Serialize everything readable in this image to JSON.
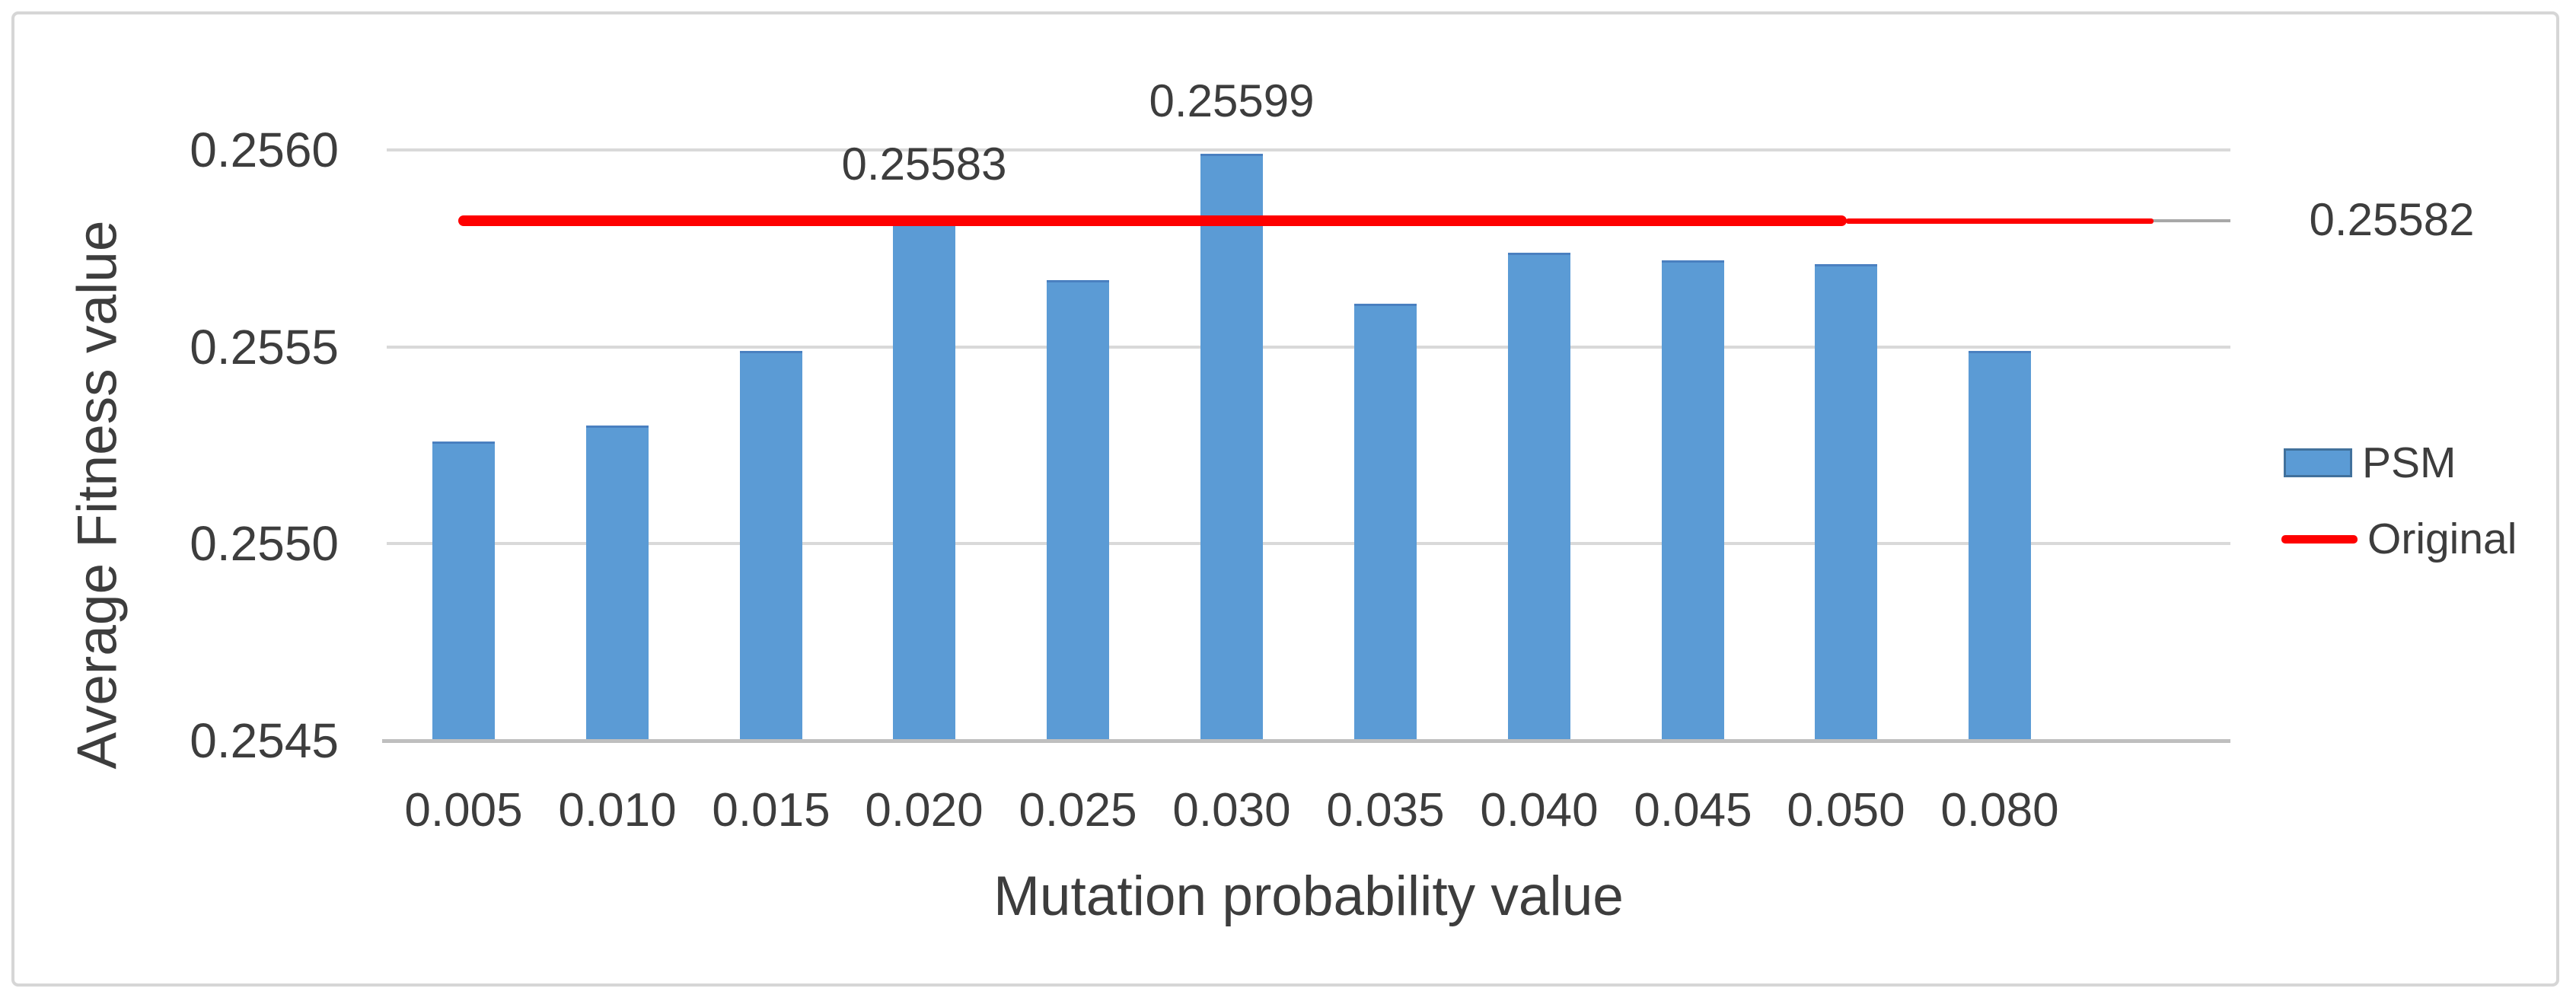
{
  "figure": {
    "background": "#ffffff",
    "border_color": "#d6d6d6"
  },
  "chart_data": {
    "type": "bar",
    "title": "",
    "xlabel": "Mutation probability value",
    "ylabel": "Average Fitness value",
    "categories": [
      "0.005",
      "0.010",
      "0.015",
      "0.020",
      "0.025",
      "0.030",
      "0.035",
      "0.040",
      "0.045",
      "0.050",
      "0.080"
    ],
    "series": [
      {
        "name": "PSM",
        "type": "bar",
        "color": "#5b9bd5",
        "border_color": "#4a80c0",
        "values": [
          0.25526,
          0.2553,
          0.25549,
          0.25583,
          0.25567,
          0.25599,
          0.25561,
          0.25574,
          0.25572,
          0.25571,
          0.25549
        ],
        "data_labels": [
          {
            "index": 3,
            "text": "0.25583"
          },
          {
            "index": 5,
            "text": "0.25599"
          }
        ]
      },
      {
        "name": "Original",
        "type": "line",
        "color": "#fe0000",
        "value": 0.25582,
        "end_label": "0.25582"
      }
    ],
    "y_ticks": [
      {
        "label": "0.2560",
        "value": 0.256
      },
      {
        "label": "0.2555",
        "value": 0.2555
      },
      {
        "label": "0.2550",
        "value": 0.255
      },
      {
        "label": "0.2545",
        "value": 0.2545
      }
    ],
    "ylim": [
      0.2545,
      0.256
    ],
    "grid": true,
    "gridline_color": "#d9d9d9",
    "axis_line_color": "#bfbfbf",
    "leader_line_color": "#a8a8a8",
    "text_color": "#3d3d3d",
    "legend_position": "right",
    "legend": [
      {
        "label": "PSM",
        "swatch": "bar"
      },
      {
        "label": "Original",
        "swatch": "line"
      }
    ]
  }
}
